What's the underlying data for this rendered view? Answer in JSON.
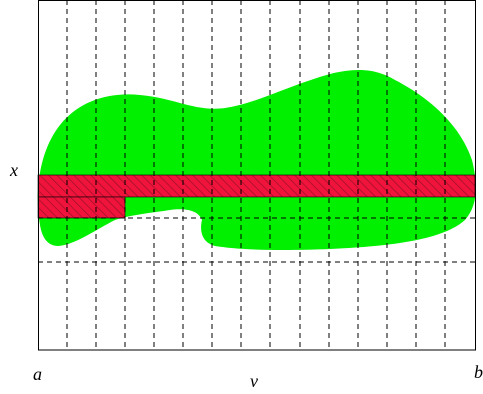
{
  "labels": {
    "x": "x",
    "a": "a",
    "v": "v",
    "b": "b"
  }
}
